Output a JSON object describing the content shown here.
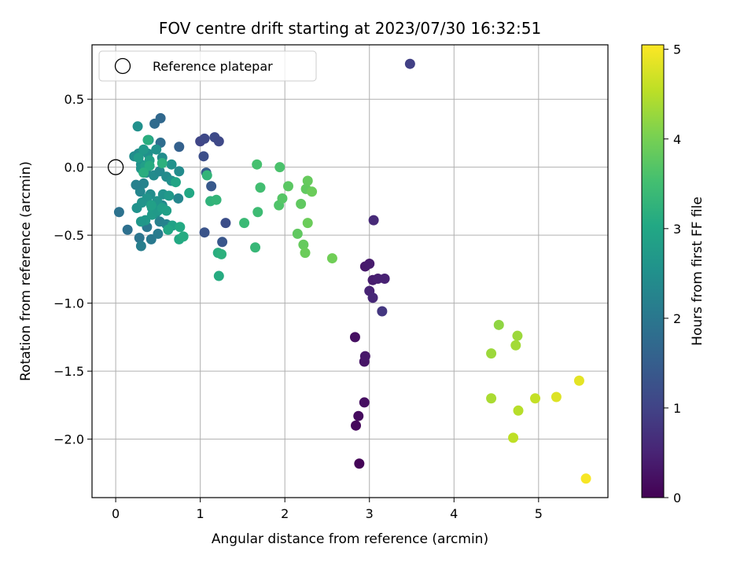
{
  "chart_data": {
    "type": "scatter",
    "title": "FOV centre drift starting at 2023/07/30 16:32:51",
    "xlabel": "Angular distance from reference (arcmin)",
    "ylabel": "Rotation from reference (arcmin)",
    "xlim": [
      -0.28,
      5.82
    ],
    "ylim": [
      -2.43,
      0.9
    ],
    "xticks": [
      0,
      1,
      2,
      3,
      4,
      5
    ],
    "xtick_labels": [
      "0",
      "1",
      "2",
      "3",
      "4",
      "5"
    ],
    "yticks": [
      0.5,
      0.0,
      -0.5,
      -1.0,
      -1.5,
      -2.0
    ],
    "ytick_labels": [
      "0.5",
      "0.0",
      "−0.5",
      "−1.0",
      "−1.5",
      "−2.0"
    ],
    "grid": true,
    "legend": {
      "placement": "upper-left",
      "entries": [
        {
          "label": "Reference platepar",
          "marker": "hollow-circle"
        }
      ]
    },
    "reference_point": {
      "x": 0,
      "y": 0
    },
    "colorbar": {
      "label": "Hours from first FF file",
      "min": 0,
      "max": 5.05,
      "ticks": [
        0,
        1,
        2,
        3,
        4,
        5
      ],
      "tick_labels": [
        "0",
        "1",
        "2",
        "3",
        "4",
        "5"
      ],
      "colormap": "viridis"
    },
    "points": [
      {
        "x": 2.88,
        "y": -2.18,
        "h": 0.05
      },
      {
        "x": 2.84,
        "y": -1.9,
        "h": 0.1
      },
      {
        "x": 2.87,
        "y": -1.83,
        "h": 0.15
      },
      {
        "x": 2.94,
        "y": -1.73,
        "h": 0.2
      },
      {
        "x": 2.83,
        "y": -1.25,
        "h": 0.22
      },
      {
        "x": 2.94,
        "y": -1.43,
        "h": 0.27
      },
      {
        "x": 2.95,
        "y": -1.39,
        "h": 0.32
      },
      {
        "x": 2.95,
        "y": -0.73,
        "h": 0.35
      },
      {
        "x": 3.0,
        "y": -0.71,
        "h": 0.38
      },
      {
        "x": 3.04,
        "y": -0.83,
        "h": 0.4
      },
      {
        "x": 3.1,
        "y": -0.82,
        "h": 0.45
      },
      {
        "x": 3.18,
        "y": -0.82,
        "h": 0.48
      },
      {
        "x": 3.0,
        "y": -0.91,
        "h": 0.5
      },
      {
        "x": 3.04,
        "y": -0.96,
        "h": 0.55
      },
      {
        "x": 3.05,
        "y": -0.39,
        "h": 0.6
      },
      {
        "x": 3.15,
        "y": -1.06,
        "h": 0.8
      },
      {
        "x": 3.48,
        "y": 0.76,
        "h": 0.95
      },
      {
        "x": 1.0,
        "y": 0.19,
        "h": 1.05
      },
      {
        "x": 1.05,
        "y": 0.21,
        "h": 1.1
      },
      {
        "x": 1.17,
        "y": 0.22,
        "h": 1.15
      },
      {
        "x": 1.22,
        "y": 0.19,
        "h": 1.1
      },
      {
        "x": 1.04,
        "y": 0.08,
        "h": 1.2
      },
      {
        "x": 1.3,
        "y": -0.41,
        "h": 1.2
      },
      {
        "x": 1.05,
        "y": -0.48,
        "h": 1.3
      },
      {
        "x": 1.26,
        "y": -0.55,
        "h": 1.35
      },
      {
        "x": 1.13,
        "y": -0.14,
        "h": 1.4
      },
      {
        "x": 1.07,
        "y": -0.04,
        "h": 1.45
      },
      {
        "x": 0.75,
        "y": 0.15,
        "h": 1.55
      },
      {
        "x": 0.53,
        "y": 0.36,
        "h": 1.7
      },
      {
        "x": 0.46,
        "y": 0.32,
        "h": 1.75
      },
      {
        "x": 0.53,
        "y": 0.18,
        "h": 1.8
      },
      {
        "x": 0.14,
        "y": -0.46,
        "h": 1.85
      },
      {
        "x": 0.04,
        "y": -0.33,
        "h": 1.9
      },
      {
        "x": 0.28,
        "y": -0.52,
        "h": 1.95
      },
      {
        "x": 0.37,
        "y": -0.44,
        "h": 2.0
      },
      {
        "x": 0.42,
        "y": -0.53,
        "h": 2.05
      },
      {
        "x": 0.5,
        "y": -0.49,
        "h": 2.1
      },
      {
        "x": 0.3,
        "y": -0.58,
        "h": 2.15
      },
      {
        "x": 0.52,
        "y": -0.4,
        "h": 2.2
      },
      {
        "x": 0.6,
        "y": -0.42,
        "h": 2.25
      },
      {
        "x": 0.74,
        "y": -0.23,
        "h": 2.3
      },
      {
        "x": 0.55,
        "y": -0.28,
        "h": 2.35
      },
      {
        "x": 0.47,
        "y": -0.34,
        "h": 2.4
      },
      {
        "x": 0.41,
        "y": -0.2,
        "h": 2.45
      },
      {
        "x": 0.29,
        "y": -0.18,
        "h": 2.3
      },
      {
        "x": 0.33,
        "y": -0.12,
        "h": 2.25
      },
      {
        "x": 0.24,
        "y": -0.13,
        "h": 2.2
      },
      {
        "x": 0.36,
        "y": -0.04,
        "h": 2.3
      },
      {
        "x": 0.45,
        "y": -0.06,
        "h": 2.4
      },
      {
        "x": 0.52,
        "y": -0.03,
        "h": 2.35
      },
      {
        "x": 0.6,
        "y": -0.07,
        "h": 2.4
      },
      {
        "x": 0.66,
        "y": -0.1,
        "h": 2.5
      },
      {
        "x": 0.55,
        "y": 0.07,
        "h": 2.45
      },
      {
        "x": 0.66,
        "y": 0.02,
        "h": 2.55
      },
      {
        "x": 0.75,
        "y": -0.03,
        "h": 2.4
      },
      {
        "x": 0.3,
        "y": 0.02,
        "h": 2.5
      },
      {
        "x": 0.22,
        "y": 0.08,
        "h": 2.45
      },
      {
        "x": 0.27,
        "y": 0.1,
        "h": 2.4
      },
      {
        "x": 0.38,
        "y": 0.1,
        "h": 2.5
      },
      {
        "x": 0.48,
        "y": 0.13,
        "h": 2.55
      },
      {
        "x": 0.39,
        "y": 0.2,
        "h": 2.6
      },
      {
        "x": 0.26,
        "y": 0.3,
        "h": 2.5
      },
      {
        "x": 0.3,
        "y": -0.01,
        "h": 2.6
      },
      {
        "x": 0.37,
        "y": -0.23,
        "h": 2.6
      },
      {
        "x": 0.43,
        "y": -0.3,
        "h": 2.65
      },
      {
        "x": 0.49,
        "y": -0.25,
        "h": 2.6
      },
      {
        "x": 0.56,
        "y": -0.2,
        "h": 2.55
      },
      {
        "x": 0.63,
        "y": -0.21,
        "h": 2.7
      },
      {
        "x": 0.25,
        "y": -0.3,
        "h": 2.55
      },
      {
        "x": 0.31,
        "y": -0.26,
        "h": 2.6
      },
      {
        "x": 0.35,
        "y": -0.39,
        "h": 2.7
      },
      {
        "x": 0.3,
        "y": -0.4,
        "h": 2.65
      },
      {
        "x": 0.43,
        "y": -0.35,
        "h": 2.75
      },
      {
        "x": 0.5,
        "y": -0.32,
        "h": 2.7
      },
      {
        "x": 0.55,
        "y": -0.3,
        "h": 2.8
      },
      {
        "x": 0.42,
        "y": -0.28,
        "h": 2.85
      },
      {
        "x": 0.35,
        "y": 0.01,
        "h": 2.8
      },
      {
        "x": 0.4,
        "y": 0.05,
        "h": 2.85
      },
      {
        "x": 0.27,
        "y": 0.07,
        "h": 2.75
      },
      {
        "x": 0.33,
        "y": 0.13,
        "h": 2.7
      },
      {
        "x": 0.6,
        "y": -0.32,
        "h": 2.85
      },
      {
        "x": 0.67,
        "y": -0.43,
        "h": 2.9
      },
      {
        "x": 0.62,
        "y": -0.46,
        "h": 3.0
      },
      {
        "x": 0.71,
        "y": -0.11,
        "h": 2.95
      },
      {
        "x": 0.87,
        "y": -0.19,
        "h": 3.0
      },
      {
        "x": 0.75,
        "y": -0.53,
        "h": 3.05
      },
      {
        "x": 0.8,
        "y": -0.51,
        "h": 3.1
      },
      {
        "x": 0.76,
        "y": -0.44,
        "h": 3.05
      },
      {
        "x": 0.4,
        "y": 0.01,
        "h": 3.1
      },
      {
        "x": 0.33,
        "y": -0.04,
        "h": 3.15
      },
      {
        "x": 0.55,
        "y": 0.03,
        "h": 3.2
      },
      {
        "x": 0.38,
        "y": 0.2,
        "h": 3.15
      },
      {
        "x": 1.22,
        "y": -0.8,
        "h": 3.1
      },
      {
        "x": 1.21,
        "y": -0.63,
        "h": 3.15
      },
      {
        "x": 1.25,
        "y": -0.64,
        "h": 3.2
      },
      {
        "x": 1.12,
        "y": -0.25,
        "h": 3.25
      },
      {
        "x": 1.19,
        "y": -0.24,
        "h": 3.3
      },
      {
        "x": 1.08,
        "y": -0.06,
        "h": 3.3
      },
      {
        "x": 1.65,
        "y": -0.59,
        "h": 3.35
      },
      {
        "x": 1.52,
        "y": -0.41,
        "h": 3.4
      },
      {
        "x": 1.68,
        "y": -0.33,
        "h": 3.45
      },
      {
        "x": 1.71,
        "y": -0.15,
        "h": 3.5
      },
      {
        "x": 1.67,
        "y": 0.02,
        "h": 3.55
      },
      {
        "x": 1.94,
        "y": 0.0,
        "h": 3.6
      },
      {
        "x": 1.93,
        "y": -0.28,
        "h": 3.65
      },
      {
        "x": 1.97,
        "y": -0.23,
        "h": 3.7
      },
      {
        "x": 2.04,
        "y": -0.14,
        "h": 3.75
      },
      {
        "x": 2.19,
        "y": -0.27,
        "h": 3.8
      },
      {
        "x": 2.25,
        "y": -0.16,
        "h": 3.82
      },
      {
        "x": 2.27,
        "y": -0.1,
        "h": 3.85
      },
      {
        "x": 2.32,
        "y": -0.18,
        "h": 3.9
      },
      {
        "x": 2.27,
        "y": -0.41,
        "h": 3.9
      },
      {
        "x": 2.15,
        "y": -0.49,
        "h": 3.8
      },
      {
        "x": 2.22,
        "y": -0.57,
        "h": 3.85
      },
      {
        "x": 2.24,
        "y": -0.63,
        "h": 3.9
      },
      {
        "x": 2.56,
        "y": -0.67,
        "h": 3.95
      },
      {
        "x": 4.53,
        "y": -1.16,
        "h": 4.2
      },
      {
        "x": 4.75,
        "y": -1.24,
        "h": 4.3
      },
      {
        "x": 4.73,
        "y": -1.31,
        "h": 4.35
      },
      {
        "x": 4.44,
        "y": -1.37,
        "h": 4.3
      },
      {
        "x": 4.44,
        "y": -1.7,
        "h": 4.4
      },
      {
        "x": 4.76,
        "y": -1.79,
        "h": 4.5
      },
      {
        "x": 4.96,
        "y": -1.7,
        "h": 4.6
      },
      {
        "x": 4.7,
        "y": -1.99,
        "h": 4.55
      },
      {
        "x": 5.21,
        "y": -1.69,
        "h": 4.8
      },
      {
        "x": 5.48,
        "y": -1.57,
        "h": 4.85
      },
      {
        "x": 5.56,
        "y": -2.29,
        "h": 5.0
      }
    ]
  }
}
